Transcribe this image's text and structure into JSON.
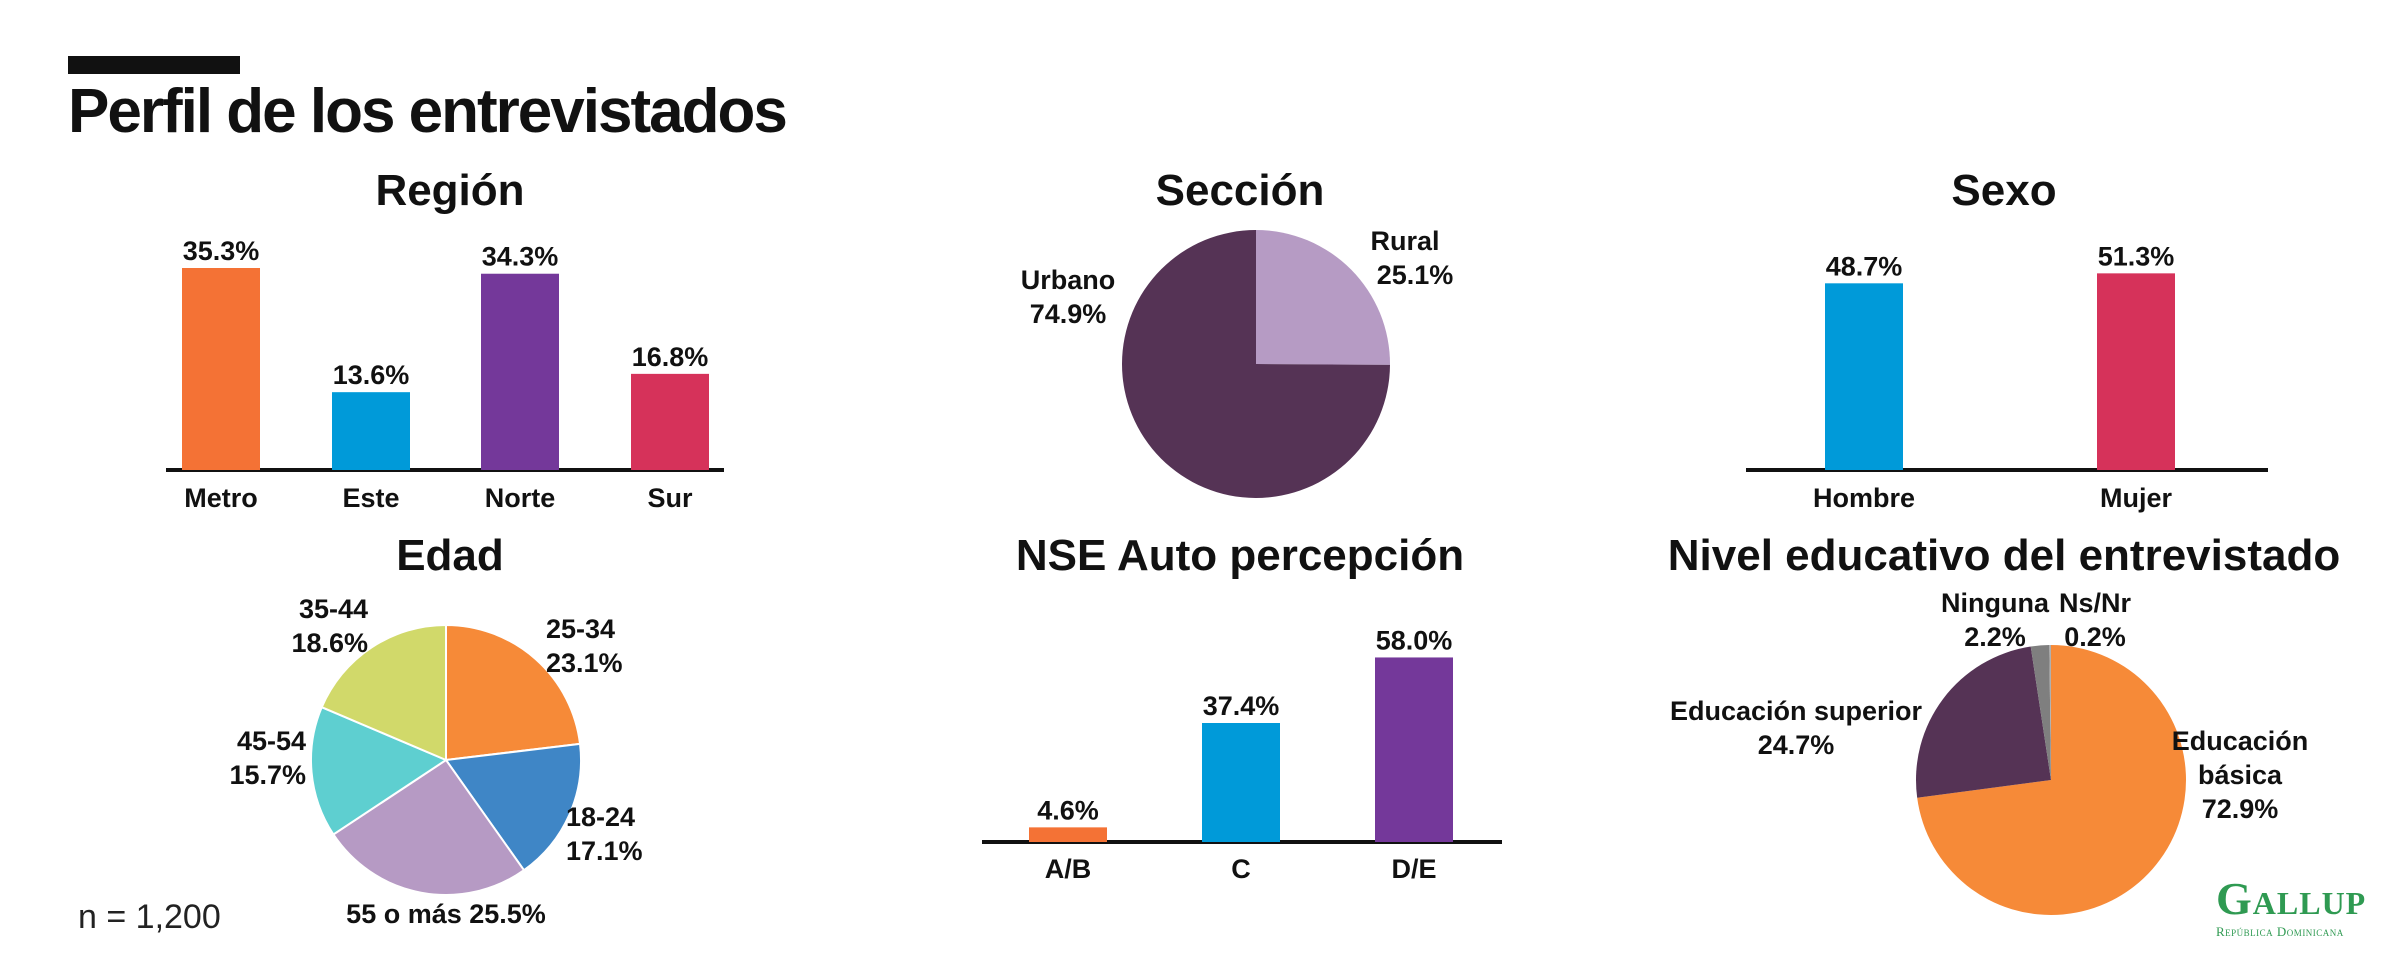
{
  "page": {
    "title": "Perfil de los entrevistados",
    "sample_size": "n = 1,200",
    "logo": {
      "name": "Gallup",
      "sub": "República Dominicana"
    }
  },
  "chart_data": [
    {
      "id": "region",
      "type": "bar",
      "title": "Región",
      "categories": [
        "Metro",
        "Este",
        "Norte",
        "Sur"
      ],
      "values": [
        35.3,
        13.6,
        34.3,
        16.8
      ],
      "labels": [
        "35.3%",
        "13.6%",
        "34.3%",
        "16.8%"
      ],
      "colors": [
        "#f47235",
        "#009ad9",
        "#74389a",
        "#d6325a"
      ],
      "ylim": [
        0,
        35.3
      ]
    },
    {
      "id": "seccion",
      "type": "pie",
      "title": "Sección",
      "categories": [
        "Rural",
        "Urbano"
      ],
      "values": [
        25.1,
        74.9
      ],
      "labels": [
        "25.1%",
        "74.9%"
      ],
      "colors": [
        "#b69bc4",
        "#553355"
      ]
    },
    {
      "id": "sexo",
      "type": "bar",
      "title": "Sexo",
      "categories": [
        "Hombre",
        "Mujer"
      ],
      "values": [
        48.7,
        51.3
      ],
      "labels": [
        "48.7%",
        "51.3%"
      ],
      "colors": [
        "#009ad9",
        "#d6325a"
      ],
      "ylim": [
        0,
        90
      ]
    },
    {
      "id": "edad",
      "type": "pie",
      "title": "Edad",
      "categories": [
        "25-34",
        "18-24",
        "55 o más",
        "45-54",
        "35-44"
      ],
      "values": [
        23.1,
        17.1,
        25.5,
        15.7,
        18.6
      ],
      "labels": [
        "23.1%",
        "17.1%",
        "25.5%",
        "15.7%",
        "18.6%"
      ],
      "colors": [
        "#f68a38",
        "#3f86c6",
        "#b69ac4",
        "#5ecfd0",
        "#d1d96a"
      ]
    },
    {
      "id": "nse",
      "type": "bar",
      "title": "NSE Auto percepción",
      "categories": [
        "A/B",
        "C",
        "D/E"
      ],
      "values": [
        4.6,
        37.4,
        58.0
      ],
      "labels": [
        "4.6%",
        "37.4%",
        "58.0%"
      ],
      "colors": [
        "#f47235",
        "#009ad9",
        "#74389a"
      ],
      "ylim": [
        0,
        66
      ]
    },
    {
      "id": "educ",
      "type": "pie",
      "title": "Nivel educativo del entrevistado",
      "categories": [
        "Educación básica",
        "Educación superior",
        "Ninguna",
        "Ns/Nr"
      ],
      "values": [
        72.9,
        24.7,
        2.2,
        0.2
      ],
      "labels": [
        "72.9%",
        "24.7%",
        "2.2%",
        "0.2%"
      ],
      "colors": [
        "#f68a38",
        "#553355",
        "#7f7f7f",
        "#b0b0b0"
      ]
    }
  ]
}
